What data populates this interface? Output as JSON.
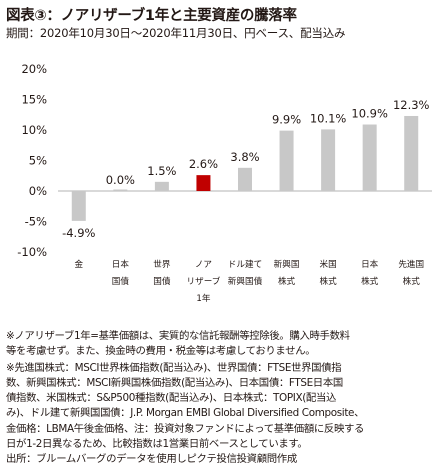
{
  "title": "図表③：ノアリザーブ1年と主要資産の騰落率",
  "subtitle": "期間：2020年10月30日～2020年11月30日、円ベース、配当込み",
  "chart_data": {
    "type": "bar",
    "categories": [
      [
        "金"
      ],
      [
        "日本",
        "国債"
      ],
      [
        "世界",
        "国債"
      ],
      [
        "ノア",
        "リザーブ",
        "1年"
      ],
      [
        "ドル建て",
        "新興国債"
      ],
      [
        "新興国",
        "株式"
      ],
      [
        "米国",
        "株式"
      ],
      [
        "日本",
        "株式"
      ],
      [
        "先進国",
        "株式"
      ]
    ],
    "values": [
      -4.9,
      0.0,
      1.5,
      2.6,
      3.8,
      9.9,
      10.1,
      10.9,
      12.3
    ],
    "data_labels": [
      "-4.9%",
      "0.0%",
      "1.5%",
      "2.6%",
      "3.8%",
      "9.9%",
      "10.1%",
      "10.9%",
      "12.3%"
    ],
    "highlight_index": 3,
    "colors": {
      "bar": "#c8c8c8",
      "highlight": "#c00000"
    },
    "ylim": [
      -10,
      20
    ],
    "yticks": [
      -10,
      -5,
      0,
      5,
      10,
      15,
      20
    ],
    "ytick_labels": [
      "-10%",
      "-5%",
      "0%",
      "5%",
      "10%",
      "15%",
      "20%"
    ],
    "grid": false
  },
  "notes": [
    [
      "※ノアリザーブ1年=基準価額は、実質的な信託報酬等控除後。購入時手数料",
      "等を考慮せず。また、換金時の費用・税金等は考慮しておりません。"
    ],
    [
      "※先進国株式：MSCI世界株価指数(配当込み)、世界国債：FTSE世界国債指",
      "数、新興国株式：MSCI新興国株価指数(配当込み)、日本国債：FTSE日本国",
      "債指数、米国株式：S&P500種指数(配当込み)、日本株式：TOPIX(配当込",
      "み)、ドル建て新興国国債：J.P. Morgan EMBI Global Diversified Composite、",
      "金価格：LBMA午後金価格、注：投資対象ファンドによって基準価額に反映する",
      "日が1-2日異なるため、比較指数は1営業日前ベースとしています。",
      "出所：ブルームバーグのデータを使用しピクテ投信投資顧問作成"
    ]
  ]
}
